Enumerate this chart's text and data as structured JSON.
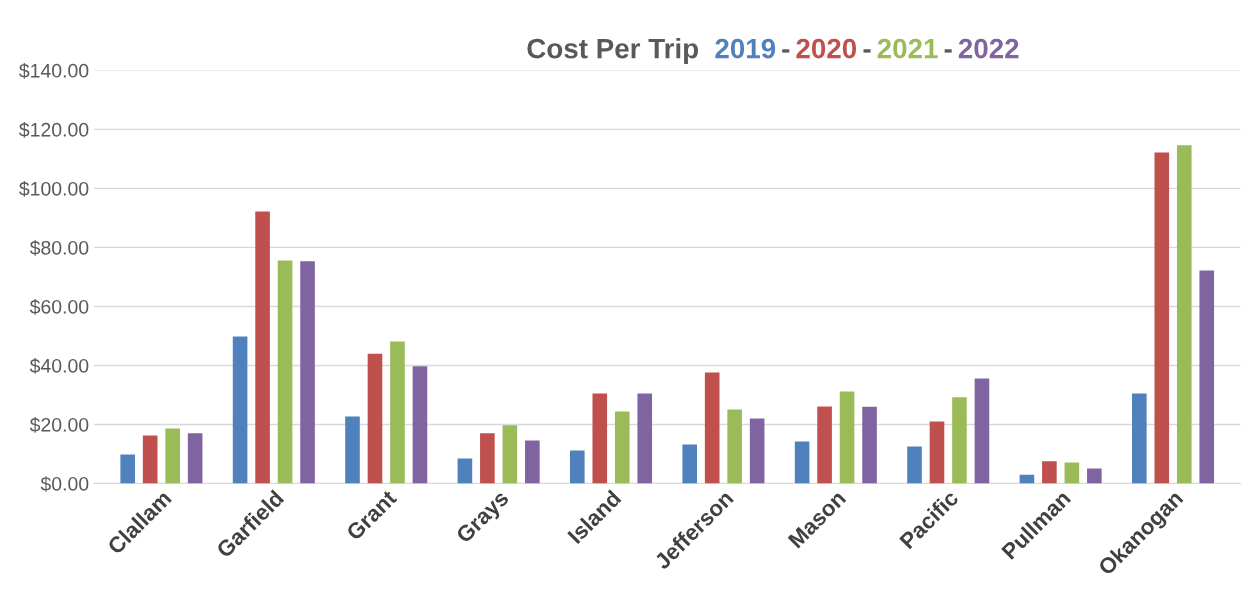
{
  "chart_data": {
    "type": "bar",
    "title": "Cost Per Trip",
    "categories": [
      "Clallam",
      "Garfield",
      "Grant",
      "Grays",
      "Island",
      "Jefferson",
      "Mason",
      "Pacific",
      "Pullman",
      "Okanogan"
    ],
    "series": [
      {
        "name": "2019",
        "color": "#4f81bd",
        "values": [
          9.8,
          49.8,
          22.7,
          8.5,
          11.2,
          13.2,
          14.2,
          12.5,
          3,
          30.5
        ]
      },
      {
        "name": "2020",
        "color": "#c0504d",
        "values": [
          16.3,
          92.2,
          44,
          17,
          30.5,
          37.6,
          26.1,
          21,
          7.5,
          112.2
        ]
      },
      {
        "name": "2021",
        "color": "#9bbb59",
        "values": [
          18.6,
          75.6,
          48.1,
          19.7,
          24.4,
          25.1,
          31.2,
          29.2,
          7.1,
          114.6
        ]
      },
      {
        "name": "2022",
        "color": "#8064a2",
        "values": [
          17,
          75.3,
          39.7,
          14.6,
          30.5,
          22,
          26,
          35.6,
          5.1,
          72.2
        ]
      }
    ],
    "annotations": [
      "-",
      "-",
      "-"
    ],
    "ylim": [
      0,
      140
    ],
    "yticks": [
      {
        "value": 0,
        "label": "$0.00"
      },
      {
        "value": 20,
        "label": "$20.00"
      },
      {
        "value": 40,
        "label": "$40.00"
      },
      {
        "value": 60,
        "label": "$60.00"
      },
      {
        "value": 80,
        "label": "$80.00"
      },
      {
        "value": 100,
        "label": "$100.00"
      },
      {
        "value": 120,
        "label": "$120.00"
      },
      {
        "value": 140,
        "label": "$140.00"
      }
    ],
    "grid": "y",
    "legend": "top"
  }
}
